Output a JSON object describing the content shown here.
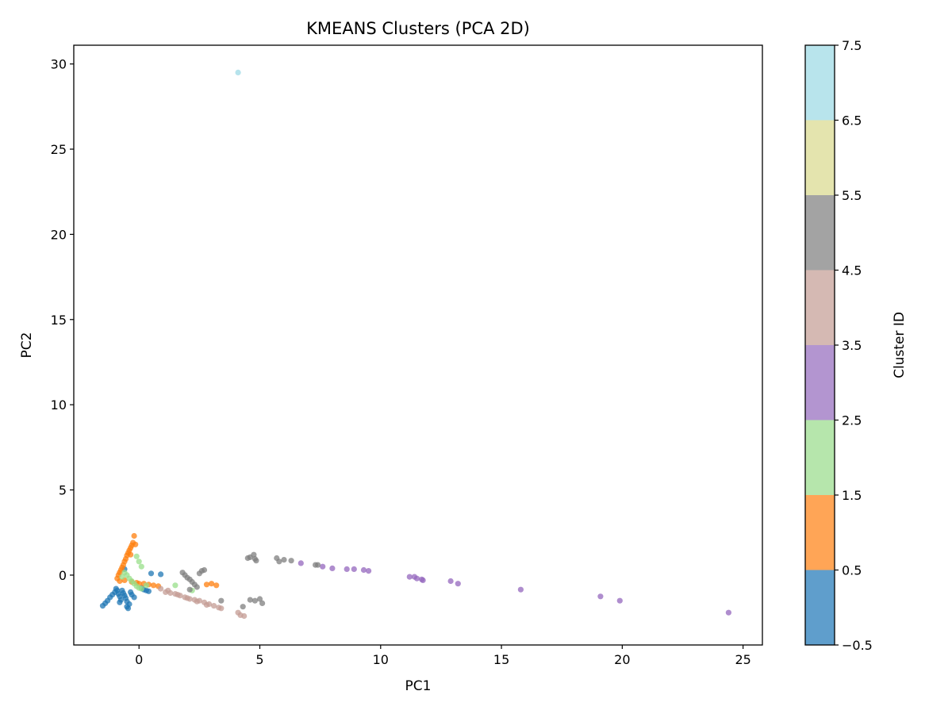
{
  "chart_data": {
    "type": "scatter",
    "title": "KMEANS Clusters (PCA 2D)",
    "xlabel": "PC1",
    "ylabel": "PC2",
    "xlim": [
      -2.7,
      25.8
    ],
    "ylim": [
      -4.1,
      31.1
    ],
    "xticks": [
      0,
      5,
      10,
      15,
      20,
      25
    ],
    "yticks": [
      0,
      5,
      10,
      15,
      20,
      25,
      30
    ],
    "grid": false,
    "colorbar": {
      "label": "Cluster ID",
      "range": [
        -0.5,
        7.5
      ],
      "ticks": [
        "−0.5",
        "0.5",
        "1.5",
        "2.5",
        "3.5",
        "4.5",
        "5.5",
        "6.5",
        "7.5"
      ],
      "tick_values": [
        -0.5,
        0.5,
        1.5,
        2.5,
        3.5,
        4.5,
        5.5,
        6.5,
        7.5
      ],
      "colors": [
        "#5f9ecc",
        "#ffa556",
        "#b6e6ac",
        "#b395d0",
        "#d5b9b3",
        "#a3a3a3",
        "#e4e4ae",
        "#b8e4ec"
      ]
    },
    "series": [
      {
        "cluster": 0,
        "color": "#1f77b4",
        "points": [
          [
            -1.5,
            -1.8
          ],
          [
            -1.4,
            -1.65
          ],
          [
            -1.3,
            -1.5
          ],
          [
            -1.2,
            -1.3
          ],
          [
            -1.1,
            -1.15
          ],
          [
            -1.0,
            -1.0
          ],
          [
            -0.9,
            -0.9
          ],
          [
            -0.85,
            -1.1
          ],
          [
            -0.8,
            -1.25
          ],
          [
            -0.75,
            -1.45
          ],
          [
            -0.7,
            -0.9
          ],
          [
            -0.65,
            -1.05
          ],
          [
            -0.6,
            -1.2
          ],
          [
            -0.55,
            -1.35
          ],
          [
            -0.5,
            -1.55
          ],
          [
            -0.5,
            -1.85
          ],
          [
            -0.45,
            -1.95
          ],
          [
            -0.4,
            -1.7
          ],
          [
            -0.35,
            -1.0
          ],
          [
            -0.3,
            -1.15
          ],
          [
            -0.6,
            0.35
          ],
          [
            -0.2,
            -1.3
          ],
          [
            0.1,
            -0.75
          ],
          [
            0.2,
            -0.85
          ],
          [
            0.3,
            -0.9
          ],
          [
            0.4,
            -0.95
          ],
          [
            0.5,
            0.1
          ],
          [
            0.9,
            0.05
          ],
          [
            -0.8,
            -1.6
          ],
          [
            -0.95,
            -0.8
          ]
        ]
      },
      {
        "cluster": 1,
        "color": "#ff7f0e",
        "points": [
          [
            -0.2,
            2.3
          ],
          [
            -0.25,
            1.9
          ],
          [
            -0.3,
            1.75
          ],
          [
            -0.35,
            1.6
          ],
          [
            -0.4,
            1.45
          ],
          [
            -0.45,
            1.3
          ],
          [
            -0.5,
            1.15
          ],
          [
            -0.55,
            0.95
          ],
          [
            -0.6,
            0.8
          ],
          [
            -0.65,
            0.6
          ],
          [
            -0.7,
            0.45
          ],
          [
            -0.75,
            0.3
          ],
          [
            -0.8,
            0.15
          ],
          [
            -0.85,
            0.0
          ],
          [
            -0.9,
            -0.2
          ],
          [
            -0.8,
            -0.35
          ],
          [
            -0.6,
            -0.3
          ],
          [
            -0.3,
            -0.4
          ],
          [
            -0.1,
            -0.45
          ],
          [
            0.2,
            -0.5
          ],
          [
            0.4,
            -0.55
          ],
          [
            0.6,
            -0.6
          ],
          [
            0.8,
            -0.65
          ],
          [
            -0.15,
            1.8
          ],
          [
            2.8,
            -0.55
          ],
          [
            3.0,
            -0.5
          ],
          [
            3.2,
            -0.6
          ],
          [
            -0.35,
            1.2
          ],
          [
            0.0,
            -0.5
          ]
        ]
      },
      {
        "cluster": 2,
        "color": "#98df8a",
        "points": [
          [
            -0.1,
            1.1
          ],
          [
            0.0,
            0.8
          ],
          [
            0.1,
            0.5
          ],
          [
            -0.6,
            0.15
          ],
          [
            -0.5,
            0.0
          ],
          [
            -0.4,
            -0.2
          ],
          [
            -0.3,
            -0.35
          ],
          [
            -0.2,
            -0.5
          ],
          [
            -0.1,
            -0.65
          ],
          [
            0.0,
            -0.75
          ],
          [
            0.1,
            -0.8
          ],
          [
            1.5,
            -0.6
          ],
          [
            2.2,
            -0.9
          ],
          [
            -0.7,
            -0.1
          ],
          [
            0.3,
            -0.6
          ]
        ]
      },
      {
        "cluster": 3,
        "color": "#9467bd",
        "points": [
          [
            6.7,
            0.7
          ],
          [
            7.6,
            0.5
          ],
          [
            8.0,
            0.4
          ],
          [
            8.6,
            0.35
          ],
          [
            8.9,
            0.35
          ],
          [
            9.3,
            0.3
          ],
          [
            9.5,
            0.25
          ],
          [
            11.2,
            -0.1
          ],
          [
            11.4,
            -0.1
          ],
          [
            11.5,
            -0.2
          ],
          [
            11.7,
            -0.25
          ],
          [
            11.75,
            -0.3
          ],
          [
            12.9,
            -0.35
          ],
          [
            13.2,
            -0.5
          ],
          [
            15.8,
            -0.85
          ],
          [
            19.1,
            -1.25
          ],
          [
            19.9,
            -1.5
          ],
          [
            24.4,
            -2.2
          ]
        ]
      },
      {
        "cluster": 4,
        "color": "#c49c94",
        "points": [
          [
            0.9,
            -0.8
          ],
          [
            1.1,
            -1.0
          ],
          [
            1.3,
            -1.05
          ],
          [
            1.5,
            -1.1
          ],
          [
            1.7,
            -1.2
          ],
          [
            1.9,
            -1.3
          ],
          [
            2.1,
            -1.4
          ],
          [
            2.3,
            -1.45
          ],
          [
            2.5,
            -1.5
          ],
          [
            2.7,
            -1.6
          ],
          [
            2.9,
            -1.7
          ],
          [
            3.1,
            -1.8
          ],
          [
            3.3,
            -1.9
          ],
          [
            3.4,
            -1.95
          ],
          [
            4.1,
            -2.2
          ],
          [
            4.2,
            -2.35
          ],
          [
            4.35,
            -2.4
          ],
          [
            1.2,
            -0.9
          ],
          [
            2.0,
            -1.35
          ],
          [
            2.4,
            -1.55
          ],
          [
            1.6,
            -1.15
          ],
          [
            2.8,
            -1.75
          ]
        ]
      },
      {
        "cluster": 5,
        "color": "#7f7f7f",
        "points": [
          [
            1.8,
            0.15
          ],
          [
            1.9,
            0.0
          ],
          [
            2.0,
            -0.15
          ],
          [
            2.1,
            -0.25
          ],
          [
            2.2,
            -0.4
          ],
          [
            2.3,
            -0.55
          ],
          [
            2.4,
            -0.7
          ],
          [
            2.5,
            0.1
          ],
          [
            2.6,
            0.25
          ],
          [
            2.7,
            0.3
          ],
          [
            2.1,
            -0.85
          ],
          [
            4.5,
            1.0
          ],
          [
            4.6,
            1.05
          ],
          [
            4.75,
            1.2
          ],
          [
            4.8,
            0.95
          ],
          [
            4.85,
            0.85
          ],
          [
            5.7,
            1.0
          ],
          [
            5.8,
            0.8
          ],
          [
            6.0,
            0.9
          ],
          [
            6.3,
            0.85
          ],
          [
            7.3,
            0.6
          ],
          [
            7.4,
            0.6
          ],
          [
            4.3,
            -1.85
          ],
          [
            4.6,
            -1.45
          ],
          [
            4.8,
            -1.5
          ],
          [
            5.0,
            -1.4
          ],
          [
            5.1,
            -1.65
          ],
          [
            3.4,
            -1.5
          ]
        ]
      },
      {
        "cluster": 7,
        "color": "#9edae5",
        "points": [
          [
            4.1,
            29.5
          ]
        ]
      }
    ]
  }
}
